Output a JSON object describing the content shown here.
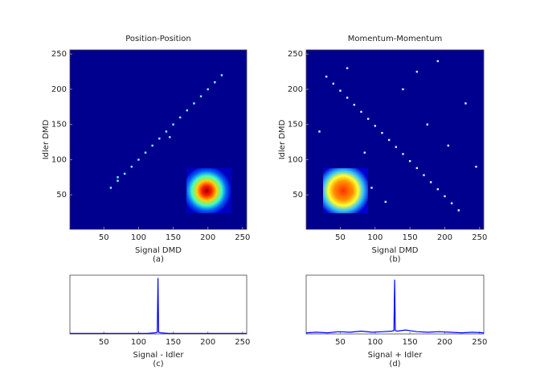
{
  "chart_data": [
    {
      "type": "scatter",
      "title": "Position-Position",
      "x_label": "Signal DMD",
      "y_label": "Idler DMD",
      "caption": "(a)",
      "x": [
        60,
        70,
        80,
        90,
        100,
        110,
        120,
        130,
        140,
        150,
        160,
        170,
        180,
        190,
        200,
        210,
        220,
        70,
        145
      ],
      "values": [
        60,
        70,
        80,
        90,
        100,
        110,
        120,
        130,
        140,
        150,
        160,
        170,
        180,
        190,
        200,
        210,
        220,
        75,
        132
      ],
      "color": "#7fffff",
      "background": "#00008f",
      "xlim": [
        1,
        256
      ],
      "ylim": [
        1,
        256
      ],
      "xticks": [
        50,
        100,
        150,
        200,
        250
      ],
      "yticks": [
        50,
        100,
        150,
        200,
        250
      ]
    },
    {
      "type": "scatter",
      "title": "Momentum-Momentum",
      "x_label": "Signal DMD",
      "y_label": "Idler DMD",
      "caption": "(b)",
      "x": [
        30,
        40,
        50,
        60,
        70,
        80,
        90,
        100,
        110,
        120,
        130,
        140,
        150,
        160,
        170,
        180,
        190,
        200,
        210,
        220,
        60,
        95,
        140,
        175,
        205,
        230,
        115,
        160,
        20,
        245,
        85,
        190
      ],
      "values": [
        218,
        208,
        198,
        188,
        178,
        168,
        158,
        148,
        138,
        128,
        118,
        108,
        98,
        88,
        78,
        68,
        58,
        48,
        38,
        28,
        230,
        60,
        200,
        150,
        120,
        180,
        40,
        225,
        140,
        90,
        110,
        240
      ],
      "color": "#bfffff",
      "background": "#00008f",
      "xlim": [
        1,
        256
      ],
      "ylim": [
        1,
        256
      ],
      "xticks": [
        50,
        100,
        150,
        200,
        250
      ],
      "yticks": [
        50,
        100,
        150,
        200,
        250
      ]
    },
    {
      "type": "line",
      "x_label": "Signal - Idler",
      "caption": "(c)",
      "x": [
        1,
        16,
        32,
        48,
        64,
        80,
        96,
        112,
        124,
        127,
        128,
        129,
        132,
        144,
        160,
        176,
        192,
        208,
        224,
        240,
        256
      ],
      "values": [
        0.01,
        0.01,
        0.01,
        0.01,
        0.01,
        0.01,
        0.01,
        0.01,
        0.02,
        0.03,
        1,
        0.03,
        0.02,
        0.01,
        0.01,
        0.01,
        0.01,
        0.01,
        0.01,
        0.01,
        0.01
      ],
      "color": "#0000ff",
      "xlim": [
        1,
        256
      ],
      "ylim": [
        0,
        1.05
      ],
      "xticks": [
        50,
        100,
        150,
        200,
        250
      ]
    },
    {
      "type": "line",
      "x_label": "Signal + Idler",
      "caption": "(d)",
      "x": [
        1,
        16,
        32,
        48,
        64,
        80,
        96,
        112,
        124,
        127,
        128,
        129,
        132,
        144,
        160,
        176,
        192,
        208,
        224,
        240,
        256
      ],
      "values": [
        0.02,
        0.03,
        0.02,
        0.04,
        0.03,
        0.05,
        0.03,
        0.04,
        0.05,
        0.06,
        0.97,
        0.06,
        0.05,
        0.07,
        0.04,
        0.03,
        0.04,
        0.03,
        0.02,
        0.03,
        0.02
      ],
      "color": "#0000ff",
      "xlim": [
        1,
        256
      ],
      "ylim": [
        0,
        1.05
      ],
      "xticks": [
        50,
        100,
        150,
        200,
        250
      ]
    }
  ]
}
